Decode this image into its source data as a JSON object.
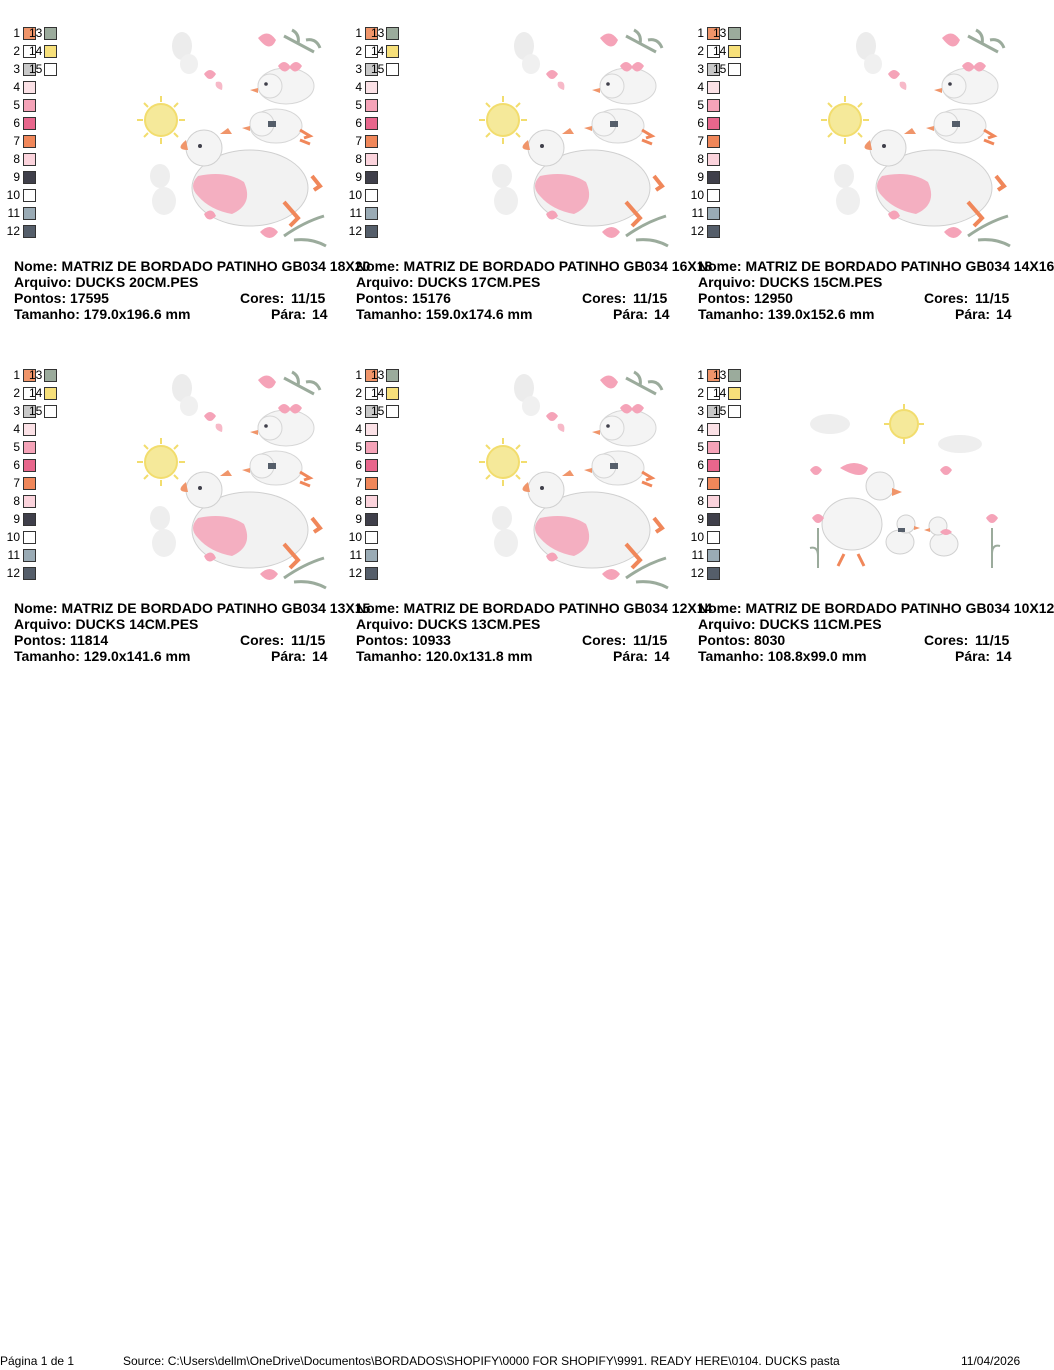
{
  "labels": {
    "name": "Nome:",
    "file": "Arquivo:",
    "stitches": "Pontos:",
    "colors": "Cores:",
    "size": "Tamanho:",
    "stops": "Pára:"
  },
  "palette": [
    {
      "n": "1",
      "color": "#f0956a"
    },
    {
      "n": "2",
      "color": "#ffffff"
    },
    {
      "n": "3",
      "color": "#c8c8c8"
    },
    {
      "n": "4",
      "color": "#fbe1e6"
    },
    {
      "n": "5",
      "color": "#f5a3b8"
    },
    {
      "n": "6",
      "color": "#e8668c"
    },
    {
      "n": "7",
      "color": "#f0875a"
    },
    {
      "n": "8",
      "color": "#fbd3dc"
    },
    {
      "n": "9",
      "color": "#3f3f4a"
    },
    {
      "n": "10",
      "color": "#ffffff"
    },
    {
      "n": "11",
      "color": "#9aabb5"
    },
    {
      "n": "12",
      "color": "#555e6a"
    },
    {
      "n": "13",
      "color": "#9bab9c"
    },
    {
      "n": "14",
      "color": "#f7e07a"
    },
    {
      "n": "15",
      "color": "#ffffff"
    }
  ],
  "designs": [
    {
      "name": "MATRIZ DE BORDADO PATINHO GB034 18X20",
      "file": "DUCKS 20CM.PES",
      "stitches": "17595",
      "colors": "11/15",
      "size": "179.0x196.6 mm",
      "stops": "14"
    },
    {
      "name": "MATRIZ DE BORDADO PATINHO GB034 16X18",
      "file": "DUCKS 17CM.PES",
      "stitches": "15176",
      "colors": "11/15",
      "size": "159.0x174.6 mm",
      "stops": "14"
    },
    {
      "name": "MATRIZ DE BORDADO PATINHO GB034 14X16",
      "file": "DUCKS 15CM.PES",
      "stitches": "12950",
      "colors": "11/15",
      "size": "139.0x152.6 mm",
      "stops": "14"
    },
    {
      "name": "MATRIZ DE BORDADO PATINHO GB034 13X15",
      "file": "DUCKS 14CM.PES",
      "stitches": "11814",
      "colors": "11/15",
      "size": "129.0x141.6 mm",
      "stops": "14"
    },
    {
      "name": "MATRIZ DE BORDADO PATINHO GB034 12X14",
      "file": "DUCKS 13CM.PES",
      "stitches": "10933",
      "colors": "11/15",
      "size": "120.0x131.8 mm",
      "stops": "14"
    },
    {
      "name": "MATRIZ DE BORDADO PATINHO GB034 10X12",
      "file": "DUCKS 11CM.PES",
      "stitches": "8030",
      "colors": "11/15",
      "size": "108.8x99.0 mm",
      "stops": "14"
    }
  ],
  "footer": {
    "page": "Página 1 de 1",
    "source": "Source: C:\\Users\\dellm\\OneDrive\\Documentos\\BORDADOS\\SHOPIFY\\0000 FOR SHOPIFY\\9991. READY HERE\\0104. DUCKS pasta",
    "date": "11/04/2026"
  }
}
